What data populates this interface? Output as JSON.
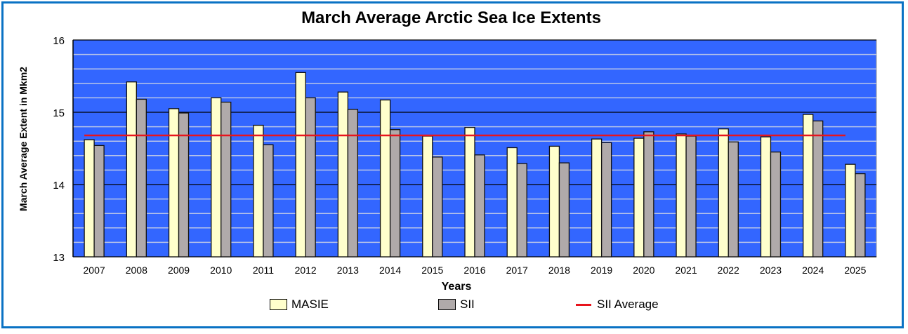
{
  "chart_data": {
    "type": "bar",
    "title": "March Average Arctic Sea Ice Extents",
    "xlabel": "Years",
    "ylabel": "March Average Extent in Mkm2",
    "ylim": [
      13,
      16
    ],
    "yticks": [
      "13",
      "14",
      "15",
      "16"
    ],
    "minor_grid_step": 0.2,
    "grid": true,
    "background_color": "#3366ff",
    "categories": [
      "2007",
      "2008",
      "2009",
      "2010",
      "2011",
      "2012",
      "2013",
      "2014",
      "2015",
      "2016",
      "2017",
      "2018",
      "2019",
      "2020",
      "2021",
      "2022",
      "2023",
      "2024",
      "2025"
    ],
    "series": [
      {
        "name": "MASIE",
        "color": "#ffffcc",
        "values": [
          14.62,
          15.42,
          15.05,
          15.2,
          14.82,
          15.55,
          15.28,
          15.17,
          14.67,
          14.79,
          14.51,
          14.53,
          14.63,
          14.64,
          14.7,
          14.77,
          14.66,
          14.97,
          14.28
        ]
      },
      {
        "name": "SII",
        "color": "#b0aaaa",
        "values": [
          14.54,
          15.18,
          14.99,
          15.14,
          14.55,
          15.2,
          15.04,
          14.76,
          14.38,
          14.41,
          14.29,
          14.3,
          14.58,
          14.73,
          14.67,
          14.59,
          14.45,
          14.88,
          14.15
        ]
      }
    ],
    "reference_line": {
      "name": "SII Average",
      "color": "#e8141c",
      "value": 14.68
    },
    "legend": {
      "position": "bottom",
      "items": [
        "MASIE",
        "SII",
        "SII Average"
      ]
    }
  }
}
